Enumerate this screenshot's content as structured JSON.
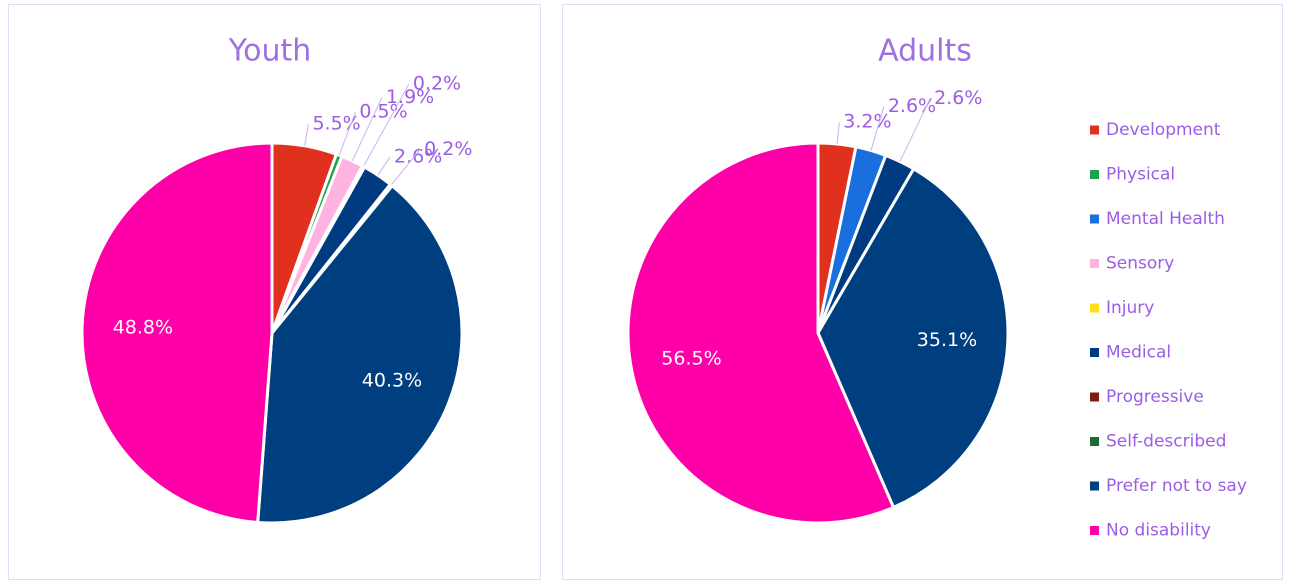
{
  "chart_data": [
    {
      "type": "pie",
      "title": "Youth",
      "values": [
        5.5,
        0.5,
        null,
        1.9,
        0.2,
        2.6,
        0.2,
        null,
        40.3,
        48.8
      ],
      "value_labels": [
        "5.5%",
        "0.5%",
        null,
        "1.9%",
        "0.2%",
        "2.6%",
        "0.2%",
        null,
        "40.3%",
        "48.8%"
      ],
      "colors": [
        "#e0301e",
        "#1aa34a",
        "#1a6fdf",
        "#ffb3e0",
        "#ffe014",
        "#003a80",
        "#7a1d10",
        "#1d6b2e",
        "#003f7f",
        "#ff00a8"
      ]
    },
    {
      "type": "pie",
      "title": "Adults",
      "categories": [
        "Development",
        "Physical",
        "Mental Health",
        "Sensory",
        "Injury",
        "Medical",
        "Progressive",
        "Self-described",
        "Prefer not to say",
        "No disability"
      ],
      "values": [
        3.2,
        null,
        2.6,
        null,
        null,
        2.6,
        null,
        null,
        35.1,
        56.5
      ],
      "value_labels": [
        "3.2%",
        null,
        "2.6%",
        null,
        null,
        "2.6%",
        null,
        null,
        "35.1%",
        "56.5%"
      ],
      "colors": [
        "#e0301e",
        "#1aa34a",
        "#1a6fdf",
        "#ffb3e0",
        "#ffe014",
        "#003a80",
        "#7a1d10",
        "#1d6b2e",
        "#003f7f",
        "#ff00a8"
      ],
      "legend": "right"
    }
  ]
}
